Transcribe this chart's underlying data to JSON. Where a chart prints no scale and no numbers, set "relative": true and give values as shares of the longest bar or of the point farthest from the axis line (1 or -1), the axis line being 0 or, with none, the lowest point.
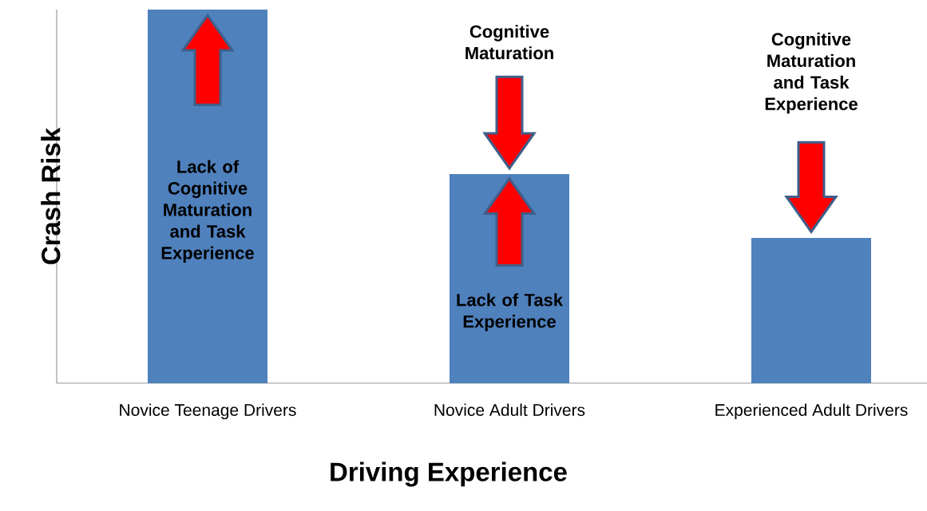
{
  "chart_data": {
    "type": "bar",
    "relative": true,
    "categories": [
      "Novice Teenage Drivers",
      "Novice Adult Drivers",
      "Experienced Adult Drivers"
    ],
    "values": [
      1,
      0.56,
      0.389
    ],
    "color": "#4f81bd",
    "xlabel": "Driving Experience",
    "ylabel": "Crash Risk",
    "annotations": [
      "Lack of Cognitive Maturation and Task Experience",
      "Cognitive Maturation",
      "Lack of Task Experience",
      "Cognitive Maturation and Task Experience"
    ]
  }
}
